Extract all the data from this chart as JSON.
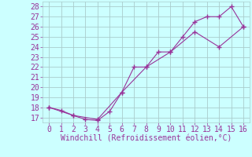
{
  "line1_x": [
    0,
    1,
    2,
    3,
    4,
    5,
    6,
    7,
    8,
    9,
    10,
    11,
    12,
    13,
    14,
    15,
    16
  ],
  "line1_y": [
    18,
    17.7,
    17.2,
    16.8,
    16.7,
    17.6,
    19.5,
    22,
    22,
    23.5,
    23.5,
    25,
    26.5,
    27,
    27,
    28,
    26
  ],
  "line2_x": [
    0,
    2,
    4,
    6,
    8,
    10,
    12,
    14,
    16
  ],
  "line2_y": [
    18,
    17.2,
    16.8,
    19.5,
    22,
    23.5,
    25.5,
    24,
    26
  ],
  "color": "#993399",
  "bg_color": "#ccffff",
  "grid_color": "#aacccc",
  "xlabel": "Windchill (Refroidissement éolien,°C)",
  "xlim": [
    -0.5,
    16.5
  ],
  "ylim": [
    16.5,
    28.5
  ],
  "yticks": [
    17,
    18,
    19,
    20,
    21,
    22,
    23,
    24,
    25,
    26,
    27,
    28
  ],
  "xticks": [
    0,
    1,
    2,
    3,
    4,
    5,
    6,
    7,
    8,
    9,
    10,
    11,
    12,
    13,
    14,
    15,
    16
  ],
  "tick_fontsize": 7,
  "xlabel_fontsize": 7
}
